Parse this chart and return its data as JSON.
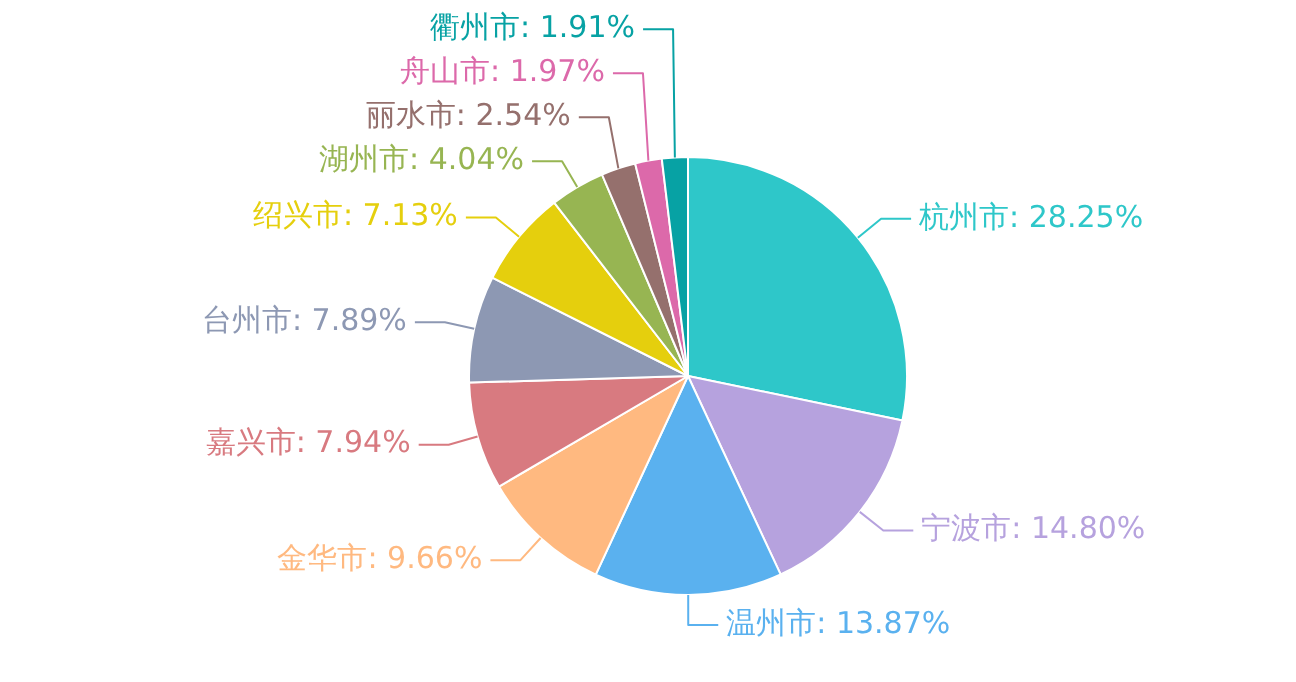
{
  "chart_data": {
    "type": "pie",
    "categories": [
      "杭州市",
      "宁波市",
      "温州市",
      "金华市",
      "嘉兴市",
      "台州市",
      "绍兴市",
      "湖州市",
      "丽水市",
      "舟山市",
      "衢州市"
    ],
    "values": [
      28.25,
      14.8,
      13.87,
      9.66,
      7.94,
      7.89,
      7.13,
      4.04,
      2.54,
      1.97,
      1.91
    ],
    "value_labels": [
      "28.25%",
      "14.80%",
      "13.87%",
      "9.66%",
      "7.94%",
      "7.89%",
      "7.13%",
      "4.04%",
      "2.54%",
      "1.97%",
      "1.91%"
    ],
    "colors": [
      "#2ec7c9",
      "#b6a2de",
      "#5ab1ef",
      "#ffb980",
      "#d87a80",
      "#8d98b3",
      "#e5cf0d",
      "#97b552",
      "#95706d",
      "#dc69aa",
      "#07a2a4"
    ],
    "legend": false
  }
}
